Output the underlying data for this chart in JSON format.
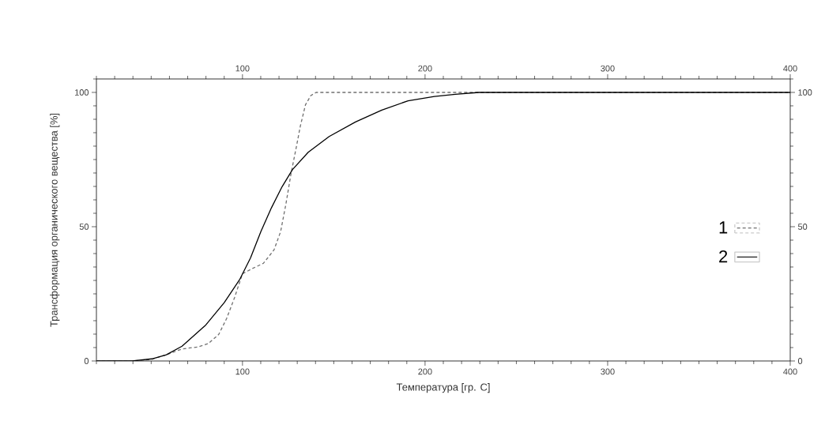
{
  "chart_data": {
    "type": "line",
    "xlabel": "Температура [гр. C]",
    "ylabel": "Трансформация органического вещества [%]",
    "xlim": [
      20,
      400
    ],
    "xticks": [
      100,
      200,
      300,
      400
    ],
    "ylim": [
      0,
      105
    ],
    "yticks": [
      0,
      50,
      100
    ],
    "x2lim": [
      20,
      400
    ],
    "x2ticks": [
      100,
      200,
      300,
      400
    ],
    "y2lim": [
      0,
      105
    ],
    "y2ticks": [
      0,
      50,
      100
    ],
    "grid": false,
    "legend": "right",
    "series": [
      {
        "name": "1",
        "color": "#707070",
        "line_style": "dashed",
        "x": [
          20,
          40,
          50,
          58.3,
          66.9,
          75.5,
          81.3,
          87,
          91.3,
          95.7,
          100,
          105.7,
          111.5,
          117.3,
          120.9,
          123.7,
          126.6,
          129.5,
          131.7,
          134.5,
          137.4,
          140.3,
          200,
          300,
          400
        ],
        "values": [
          0,
          0,
          0.6,
          2.3,
          4.5,
          5.2,
          6.5,
          9.9,
          15.8,
          23.7,
          32.5,
          34.5,
          36.4,
          41.4,
          48.2,
          58.1,
          69.8,
          79.7,
          87.5,
          95.4,
          98.8,
          100,
          100,
          100,
          100
        ]
      },
      {
        "name": "2",
        "color": "#000000",
        "line_style": "solid",
        "x": [
          20,
          39.6,
          50.4,
          58.3,
          66.9,
          79.9,
          90,
          98.6,
          104.4,
          110.1,
          115.9,
          121.7,
          127.4,
          136,
          147.5,
          161.9,
          176.3,
          190.7,
          205.1,
          216.6,
          229.5,
          300,
          400
        ],
        "values": [
          0,
          0,
          0.8,
          2.3,
          5.5,
          13.4,
          21.7,
          30.5,
          38.4,
          48.2,
          57.1,
          64.9,
          71.3,
          77.7,
          83.6,
          89,
          93.4,
          96.9,
          98.5,
          99.3,
          100,
          100,
          100
        ]
      }
    ]
  }
}
